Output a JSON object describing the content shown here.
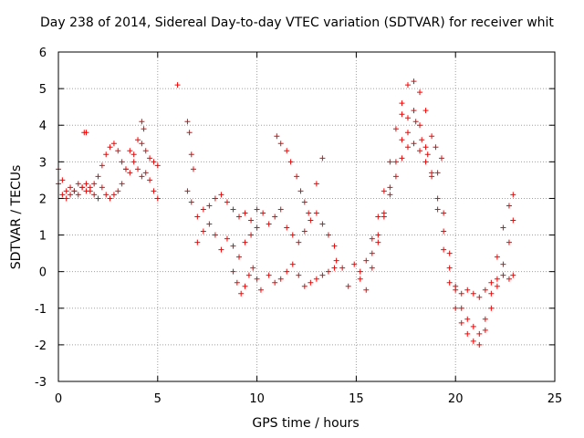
{
  "chart_data": {
    "type": "scatter",
    "title": "Day 238 of 2014, Sidereal Day-to-day VTEC variation (SDTVAR) for receiver whit",
    "xlabel": "GPS time / hours",
    "ylabel": "SDTVAR / TECUs",
    "xlim": [
      0,
      25
    ],
    "ylim": [
      -3,
      6
    ],
    "xticks": [
      0,
      5,
      10,
      15,
      20,
      25
    ],
    "yticks": [
      -3,
      -2,
      -1,
      0,
      1,
      2,
      3,
      4,
      5,
      6
    ],
    "grid": true,
    "marker": "+",
    "series": [
      {
        "name": "SDTVAR",
        "color": "#ff0000",
        "x": [
          0.0,
          0.2,
          0.4,
          0.6,
          0.8,
          1.0,
          1.2,
          1.4,
          1.6,
          1.8,
          2.0,
          2.2,
          2.4,
          2.6,
          2.8,
          3.0,
          3.2,
          3.4,
          3.6,
          3.8,
          4.0,
          4.2,
          4.4,
          4.6,
          4.8,
          5.0,
          0.0,
          0.2,
          0.4,
          0.6,
          0.8,
          1.0,
          1.2,
          1.4,
          1.6,
          1.8,
          2.0,
          2.2,
          2.4,
          2.6,
          2.8,
          3.0,
          3.2,
          3.4,
          3.6,
          3.8,
          4.0,
          4.2,
          4.4,
          4.6,
          4.8,
          5.0,
          1.3,
          1.4,
          4.2,
          4.3,
          6.0,
          6.5,
          6.6,
          6.7,
          6.8,
          6.5,
          6.7,
          7.0,
          7.3,
          7.6,
          7.9,
          8.2,
          8.5,
          8.8,
          9.1,
          9.4,
          9.7,
          10.0,
          10.3,
          7.0,
          7.3,
          7.6,
          7.9,
          8.2,
          8.5,
          8.8,
          9.1,
          9.4,
          9.7,
          10.0,
          8.8,
          9.0,
          9.2,
          9.4,
          9.6,
          9.8,
          10.0,
          10.2,
          10.6,
          10.9,
          11.2,
          11.5,
          11.8,
          12.1,
          12.4,
          12.7,
          13.0,
          13.3,
          13.6,
          13.9,
          10.6,
          10.9,
          11.2,
          11.5,
          11.8,
          12.1,
          12.4,
          12.7,
          13.0,
          13.3,
          13.6,
          13.9,
          11.0,
          11.2,
          11.5,
          11.7,
          12.0,
          12.2,
          12.4,
          12.6,
          13.0,
          13.3,
          14.0,
          14.3,
          14.6,
          14.9,
          15.2,
          15.5,
          15.8,
          16.1,
          16.4,
          16.7,
          17.0,
          17.3,
          17.6,
          17.9,
          18.2,
          18.5,
          18.8,
          19.1,
          19.4,
          19.7,
          20.0,
          20.3,
          20.6,
          20.9,
          21.2,
          21.5,
          21.8,
          22.1,
          22.4,
          22.7,
          22.9,
          15.8,
          16.1,
          16.4,
          16.7,
          17.0,
          17.3,
          17.6,
          17.9,
          18.2,
          18.5,
          18.8,
          19.1,
          19.4,
          19.7,
          20.0,
          20.3,
          20.6,
          20.9,
          21.2,
          21.5,
          21.8,
          22.1,
          22.4,
          22.7,
          22.9,
          15.2,
          15.5,
          15.8,
          16.1,
          16.4,
          16.7,
          17.0,
          17.3,
          17.6,
          17.9,
          18.2,
          18.5,
          18.8,
          19.1,
          19.4,
          19.7,
          20.0,
          20.3,
          20.6,
          20.9,
          21.2,
          21.5,
          21.8,
          22.1,
          22.4,
          22.7,
          22.9,
          17.3,
          17.6,
          18.0,
          18.3,
          18.6,
          19.0,
          19.3
        ],
        "y": [
          2.8,
          2.5,
          2.2,
          2.3,
          2.2,
          2.4,
          2.3,
          2.2,
          2.3,
          2.4,
          2.6,
          2.9,
          3.2,
          3.4,
          3.5,
          3.3,
          3.0,
          2.8,
          3.3,
          3.2,
          2.8,
          2.6,
          2.7,
          2.5,
          2.2,
          2.0,
          2.4,
          2.1,
          2.0,
          2.1,
          2.2,
          2.1,
          2.3,
          2.4,
          2.2,
          2.1,
          2.0,
          2.3,
          2.1,
          2.0,
          2.1,
          2.2,
          2.4,
          2.8,
          2.7,
          3.0,
          3.6,
          3.5,
          3.3,
          3.1,
          3.0,
          2.9,
          3.8,
          3.8,
          4.1,
          3.9,
          5.1,
          4.1,
          3.8,
          3.2,
          2.8,
          2.2,
          1.9,
          1.5,
          1.7,
          1.8,
          2.0,
          2.1,
          1.9,
          1.7,
          1.5,
          1.6,
          1.4,
          1.7,
          1.6,
          0.8,
          1.1,
          1.3,
          1.0,
          0.6,
          0.9,
          0.7,
          0.4,
          0.8,
          1.0,
          1.2,
          0.0,
          -0.3,
          -0.6,
          -0.4,
          -0.1,
          0.1,
          -0.2,
          -0.5,
          1.3,
          1.5,
          1.7,
          1.2,
          1.0,
          0.8,
          1.1,
          1.4,
          1.6,
          1.3,
          1.0,
          0.7,
          -0.1,
          -0.3,
          -0.2,
          0.0,
          0.2,
          -0.1,
          -0.4,
          -0.3,
          -0.2,
          -0.1,
          0.0,
          0.1,
          3.7,
          3.5,
          3.3,
          3.0,
          2.6,
          2.2,
          1.9,
          1.6,
          2.4,
          3.1,
          0.3,
          0.1,
          -0.4,
          0.2,
          -0.2,
          -0.5,
          0.1,
          0.8,
          1.5,
          2.3,
          3.0,
          3.6,
          4.2,
          4.4,
          4.0,
          3.4,
          2.7,
          1.7,
          0.6,
          -0.3,
          -1.0,
          -1.4,
          -1.7,
          -1.9,
          -2.0,
          -1.6,
          -1.0,
          -0.4,
          0.2,
          0.8,
          1.4,
          0.5,
          1.0,
          1.6,
          2.1,
          2.6,
          3.1,
          3.4,
          3.5,
          3.3,
          3.0,
          2.6,
          2.0,
          1.1,
          0.1,
          -0.5,
          -0.6,
          -0.5,
          -0.6,
          -0.7,
          -0.5,
          -0.3,
          -0.2,
          -0.1,
          -0.2,
          -0.1,
          0.0,
          0.3,
          0.9,
          1.5,
          2.2,
          3.0,
          3.9,
          4.6,
          5.1,
          5.2,
          4.9,
          4.4,
          3.7,
          2.7,
          1.6,
          0.5,
          -0.4,
          -1.0,
          -1.3,
          -1.5,
          -1.7,
          -1.3,
          -0.6,
          0.4,
          1.2,
          1.8,
          2.1,
          4.3,
          3.8,
          4.1,
          3.6,
          3.2,
          3.4,
          3.1
        ]
      }
    ]
  }
}
